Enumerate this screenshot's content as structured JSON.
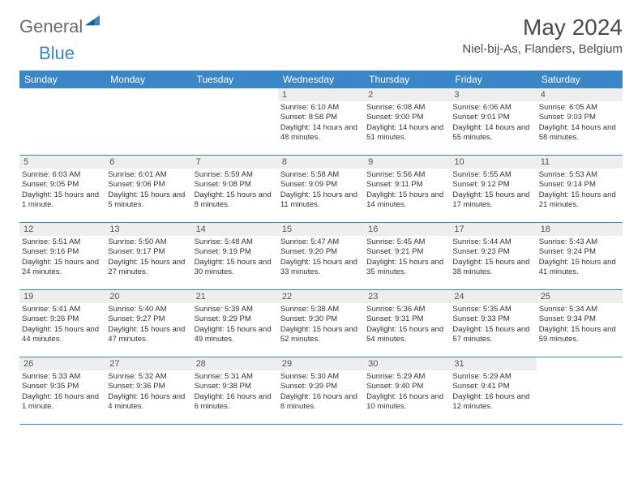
{
  "logo": {
    "text1": "General",
    "text2": "Blue"
  },
  "title": "May 2024",
  "location": "Niel-bij-As, Flanders, Belgium",
  "colors": {
    "header_bg": "#3b86c6",
    "daynum_bg": "#eeeeee",
    "text": "#4a4a4a",
    "logo_gray": "#6a6a6a",
    "logo_blue": "#3b86c6"
  },
  "dow": [
    "Sunday",
    "Monday",
    "Tuesday",
    "Wednesday",
    "Thursday",
    "Friday",
    "Saturday"
  ],
  "weeks": [
    [
      {
        "n": "",
        "sr": "",
        "ss": "",
        "dl": ""
      },
      {
        "n": "",
        "sr": "",
        "ss": "",
        "dl": ""
      },
      {
        "n": "",
        "sr": "",
        "ss": "",
        "dl": ""
      },
      {
        "n": "1",
        "sr": "Sunrise: 6:10 AM",
        "ss": "Sunset: 8:58 PM",
        "dl": "Daylight: 14 hours and 48 minutes."
      },
      {
        "n": "2",
        "sr": "Sunrise: 6:08 AM",
        "ss": "Sunset: 9:00 PM",
        "dl": "Daylight: 14 hours and 51 minutes."
      },
      {
        "n": "3",
        "sr": "Sunrise: 6:06 AM",
        "ss": "Sunset: 9:01 PM",
        "dl": "Daylight: 14 hours and 55 minutes."
      },
      {
        "n": "4",
        "sr": "Sunrise: 6:05 AM",
        "ss": "Sunset: 9:03 PM",
        "dl": "Daylight: 14 hours and 58 minutes."
      }
    ],
    [
      {
        "n": "5",
        "sr": "Sunrise: 6:03 AM",
        "ss": "Sunset: 9:05 PM",
        "dl": "Daylight: 15 hours and 1 minute."
      },
      {
        "n": "6",
        "sr": "Sunrise: 6:01 AM",
        "ss": "Sunset: 9:06 PM",
        "dl": "Daylight: 15 hours and 5 minutes."
      },
      {
        "n": "7",
        "sr": "Sunrise: 5:59 AM",
        "ss": "Sunset: 9:08 PM",
        "dl": "Daylight: 15 hours and 8 minutes."
      },
      {
        "n": "8",
        "sr": "Sunrise: 5:58 AM",
        "ss": "Sunset: 9:09 PM",
        "dl": "Daylight: 15 hours and 11 minutes."
      },
      {
        "n": "9",
        "sr": "Sunrise: 5:56 AM",
        "ss": "Sunset: 9:11 PM",
        "dl": "Daylight: 15 hours and 14 minutes."
      },
      {
        "n": "10",
        "sr": "Sunrise: 5:55 AM",
        "ss": "Sunset: 9:12 PM",
        "dl": "Daylight: 15 hours and 17 minutes."
      },
      {
        "n": "11",
        "sr": "Sunrise: 5:53 AM",
        "ss": "Sunset: 9:14 PM",
        "dl": "Daylight: 15 hours and 21 minutes."
      }
    ],
    [
      {
        "n": "12",
        "sr": "Sunrise: 5:51 AM",
        "ss": "Sunset: 9:16 PM",
        "dl": "Daylight: 15 hours and 24 minutes."
      },
      {
        "n": "13",
        "sr": "Sunrise: 5:50 AM",
        "ss": "Sunset: 9:17 PM",
        "dl": "Daylight: 15 hours and 27 minutes."
      },
      {
        "n": "14",
        "sr": "Sunrise: 5:48 AM",
        "ss": "Sunset: 9:19 PM",
        "dl": "Daylight: 15 hours and 30 minutes."
      },
      {
        "n": "15",
        "sr": "Sunrise: 5:47 AM",
        "ss": "Sunset: 9:20 PM",
        "dl": "Daylight: 15 hours and 33 minutes."
      },
      {
        "n": "16",
        "sr": "Sunrise: 5:45 AM",
        "ss": "Sunset: 9:21 PM",
        "dl": "Daylight: 15 hours and 35 minutes."
      },
      {
        "n": "17",
        "sr": "Sunrise: 5:44 AM",
        "ss": "Sunset: 9:23 PM",
        "dl": "Daylight: 15 hours and 38 minutes."
      },
      {
        "n": "18",
        "sr": "Sunrise: 5:43 AM",
        "ss": "Sunset: 9:24 PM",
        "dl": "Daylight: 15 hours and 41 minutes."
      }
    ],
    [
      {
        "n": "19",
        "sr": "Sunrise: 5:41 AM",
        "ss": "Sunset: 9:26 PM",
        "dl": "Daylight: 15 hours and 44 minutes."
      },
      {
        "n": "20",
        "sr": "Sunrise: 5:40 AM",
        "ss": "Sunset: 9:27 PM",
        "dl": "Daylight: 15 hours and 47 minutes."
      },
      {
        "n": "21",
        "sr": "Sunrise: 5:39 AM",
        "ss": "Sunset: 9:29 PM",
        "dl": "Daylight: 15 hours and 49 minutes."
      },
      {
        "n": "22",
        "sr": "Sunrise: 5:38 AM",
        "ss": "Sunset: 9:30 PM",
        "dl": "Daylight: 15 hours and 52 minutes."
      },
      {
        "n": "23",
        "sr": "Sunrise: 5:36 AM",
        "ss": "Sunset: 9:31 PM",
        "dl": "Daylight: 15 hours and 54 minutes."
      },
      {
        "n": "24",
        "sr": "Sunrise: 5:35 AM",
        "ss": "Sunset: 9:33 PM",
        "dl": "Daylight: 15 hours and 57 minutes."
      },
      {
        "n": "25",
        "sr": "Sunrise: 5:34 AM",
        "ss": "Sunset: 9:34 PM",
        "dl": "Daylight: 15 hours and 59 minutes."
      }
    ],
    [
      {
        "n": "26",
        "sr": "Sunrise: 5:33 AM",
        "ss": "Sunset: 9:35 PM",
        "dl": "Daylight: 16 hours and 1 minute."
      },
      {
        "n": "27",
        "sr": "Sunrise: 5:32 AM",
        "ss": "Sunset: 9:36 PM",
        "dl": "Daylight: 16 hours and 4 minutes."
      },
      {
        "n": "28",
        "sr": "Sunrise: 5:31 AM",
        "ss": "Sunset: 9:38 PM",
        "dl": "Daylight: 16 hours and 6 minutes."
      },
      {
        "n": "29",
        "sr": "Sunrise: 5:30 AM",
        "ss": "Sunset: 9:39 PM",
        "dl": "Daylight: 16 hours and 8 minutes."
      },
      {
        "n": "30",
        "sr": "Sunrise: 5:29 AM",
        "ss": "Sunset: 9:40 PM",
        "dl": "Daylight: 16 hours and 10 minutes."
      },
      {
        "n": "31",
        "sr": "Sunrise: 5:29 AM",
        "ss": "Sunset: 9:41 PM",
        "dl": "Daylight: 16 hours and 12 minutes."
      },
      {
        "n": "",
        "sr": "",
        "ss": "",
        "dl": ""
      }
    ]
  ]
}
